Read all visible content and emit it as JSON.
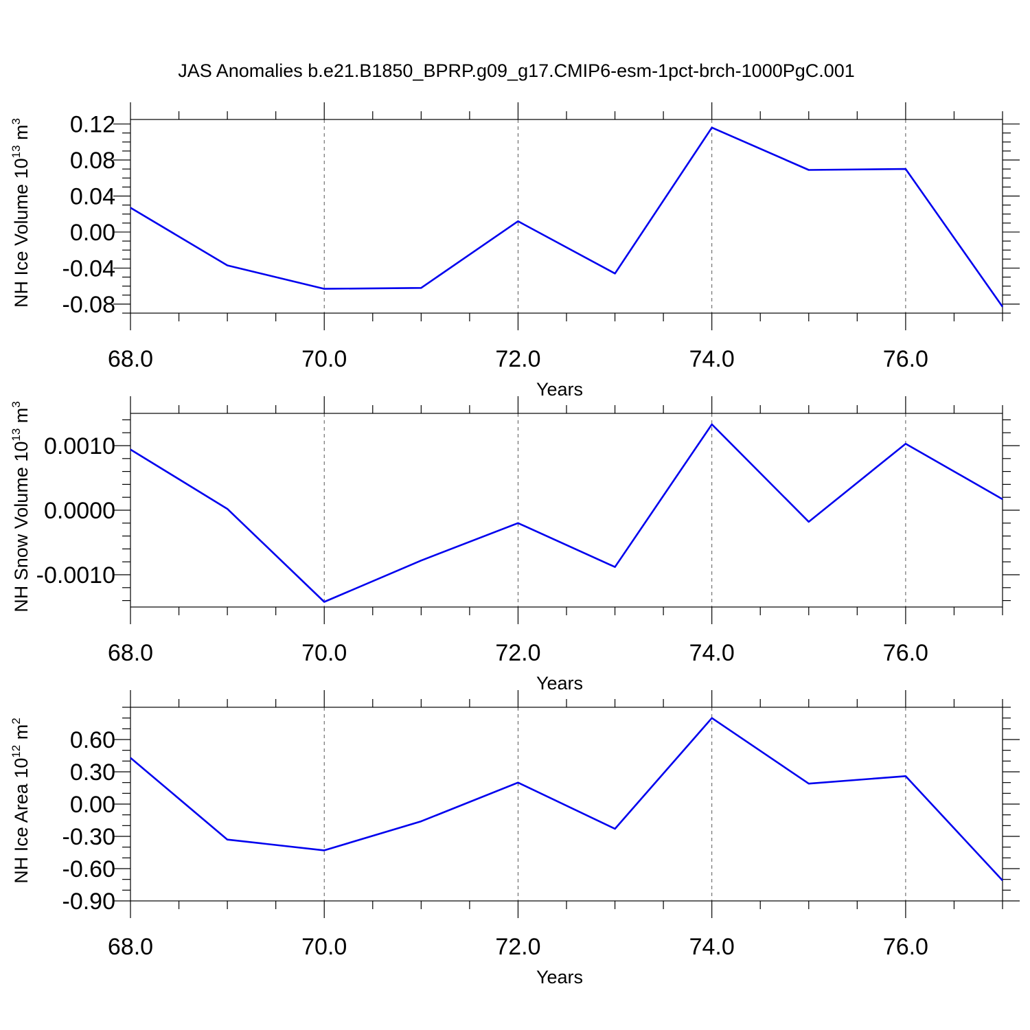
{
  "title": "JAS Anomalies b.e21.B1850_BPRP.g09_g17.CMIP6-esm-1pct-brch-1000PgC.001",
  "colors": {
    "line": "#0000ee",
    "grid": "#555555",
    "frame": "#000000"
  },
  "chart_data": [
    {
      "type": "line",
      "xlabel": "Years",
      "ylabel_main": "NH Ice Volume 10",
      "ylabel_sup": "13",
      "ylabel_unit": " m",
      "ylabel_unit_sup": "3",
      "xlim": [
        68,
        77
      ],
      "ylim": [
        -0.09,
        0.125
      ],
      "x_ticks": [
        68,
        70,
        72,
        74,
        76
      ],
      "x_tick_labels": [
        "68.0",
        "70.0",
        "72.0",
        "74.0",
        "76.0"
      ],
      "y_ticks": [
        -0.08,
        -0.04,
        0.0,
        0.04,
        0.08,
        0.12
      ],
      "y_tick_labels": [
        "-0.08",
        "-0.04",
        "0.00",
        "0.04",
        "0.08",
        "0.12"
      ],
      "y_minor_step": 0.01,
      "grid": "x-major dashed",
      "x": [
        68,
        69,
        70,
        71,
        72,
        73,
        74,
        75,
        76,
        77
      ],
      "values": [
        0.027,
        -0.037,
        -0.063,
        -0.062,
        0.012,
        -0.046,
        0.116,
        0.069,
        0.07,
        -0.083
      ]
    },
    {
      "type": "line",
      "xlabel": "Years",
      "ylabel_main": "NH Snow Volume 10",
      "ylabel_sup": "13",
      "ylabel_unit": " m",
      "ylabel_unit_sup": "3",
      "xlim": [
        68,
        77
      ],
      "ylim": [
        -0.0015,
        0.0015
      ],
      "x_ticks": [
        68,
        70,
        72,
        74,
        76
      ],
      "x_tick_labels": [
        "68.0",
        "70.0",
        "72.0",
        "74.0",
        "76.0"
      ],
      "y_ticks": [
        -0.001,
        0.0,
        0.001
      ],
      "y_tick_labels": [
        "-0.0010",
        "0.0000",
        "0.0010"
      ],
      "y_minor_step": 0.0002,
      "grid": "x-major dashed",
      "x": [
        68,
        69,
        70,
        71,
        72,
        73,
        74,
        75,
        76,
        77
      ],
      "values": [
        0.00094,
        2e-05,
        -0.00142,
        -0.00078,
        -0.0002,
        -0.00088,
        0.00133,
        -0.00018,
        0.00103,
        0.00017
      ]
    },
    {
      "type": "line",
      "xlabel": "Years",
      "ylabel_main": "NH Ice Area 10",
      "ylabel_sup": "12",
      "ylabel_unit": " m",
      "ylabel_unit_sup": "2",
      "xlim": [
        68,
        77
      ],
      "ylim": [
        -0.9,
        0.9
      ],
      "x_ticks": [
        68,
        70,
        72,
        74,
        76
      ],
      "x_tick_labels": [
        "68.0",
        "70.0",
        "72.0",
        "74.0",
        "76.0"
      ],
      "y_ticks": [
        -0.9,
        -0.6,
        -0.3,
        0.0,
        0.3,
        0.6
      ],
      "y_tick_labels": [
        "-0.90",
        "-0.60",
        "-0.30",
        "0.00",
        "0.30",
        "0.60"
      ],
      "y_minor_step": 0.1,
      "grid": "x-major dashed",
      "x": [
        68,
        69,
        70,
        71,
        72,
        73,
        74,
        75,
        76,
        77
      ],
      "values": [
        0.43,
        -0.33,
        -0.43,
        -0.16,
        0.2,
        -0.23,
        0.8,
        0.19,
        0.26,
        -0.71
      ]
    }
  ]
}
